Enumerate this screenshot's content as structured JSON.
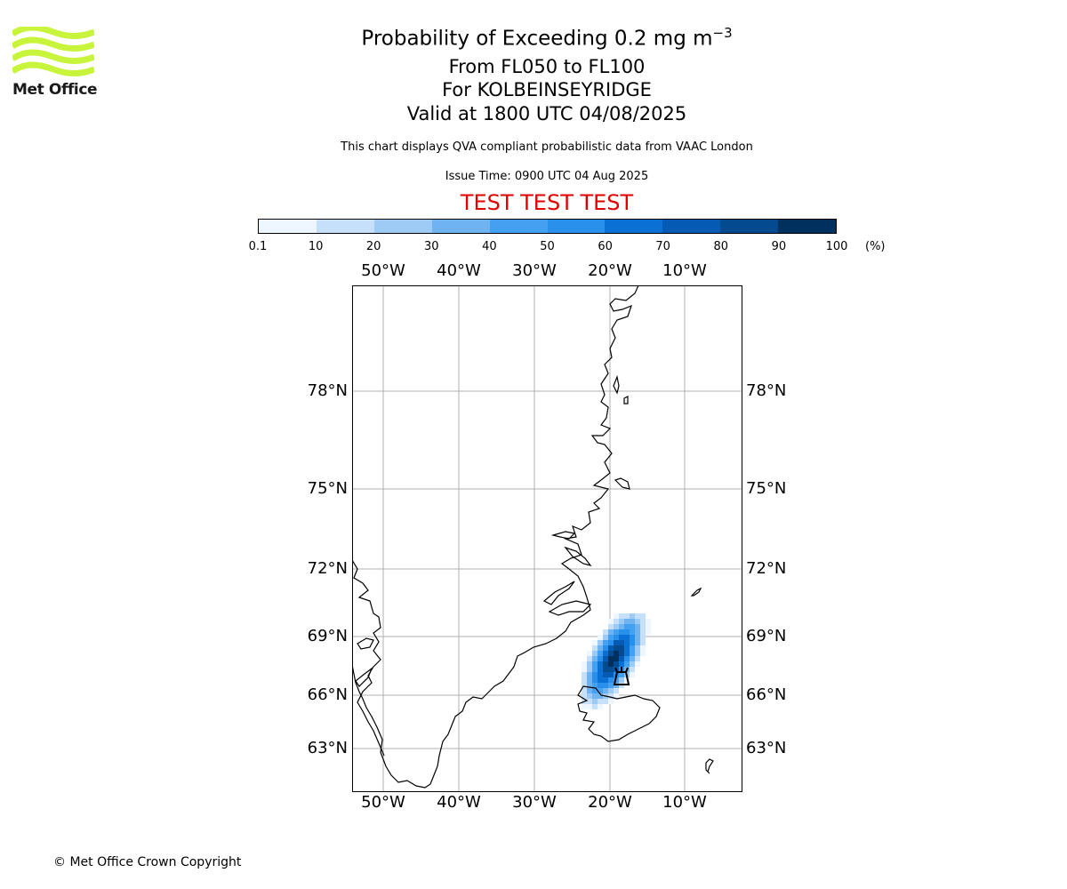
{
  "logo": {
    "text": "Met Office",
    "brand_color": "#c8f53c",
    "text_color": "#1a1a1a"
  },
  "title": {
    "line1_text": "Probability of Exceeding 0.2 mg m",
    "line1_exponent": "−3",
    "line2": "From FL050 to FL100",
    "line3": "For KOLBEINSEYRIDGE",
    "line4": "Valid at 1800 UTC 04/08/2025"
  },
  "description": "This chart displays QVA compliant probabilistic data from VAAC London",
  "issue_time": "Issue Time: 0900 UTC 04 Aug 2025",
  "test_banner": {
    "text": "TEST TEST TEST",
    "color": "#e00000"
  },
  "colorbar": {
    "unit": "(%)",
    "ticks": [
      "0.1",
      "10",
      "20",
      "30",
      "40",
      "50",
      "60",
      "70",
      "80",
      "90",
      "100"
    ],
    "colors": [
      "#eef6ff",
      "#c6e0fa",
      "#9ecbf6",
      "#70b3f1",
      "#44a0f0",
      "#2890eb",
      "#0b70d3",
      "#055ab3",
      "#034b8e",
      "#00305e"
    ]
  },
  "map": {
    "longitude_labels": [
      "50°W",
      "40°W",
      "30°W",
      "20°W",
      "10°W"
    ],
    "latitude_labels": [
      "78°N",
      "75°N",
      "72°N",
      "69°N",
      "66°N",
      "63°N"
    ],
    "grid": true,
    "volcano_marker": "volcano-icon"
  },
  "copyright": "© Met Office Crown Copyright"
}
